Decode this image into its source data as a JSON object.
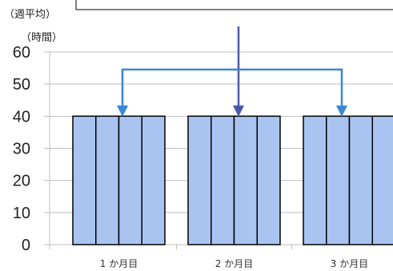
{
  "chart_data": {
    "type": "bar",
    "categories": [
      "1 か月目",
      "2 か月目",
      "3 か月目"
    ],
    "series": [
      {
        "values": [
          40,
          40,
          40
        ]
      },
      {
        "values": [
          40,
          40,
          40
        ]
      },
      {
        "values": [
          40,
          40,
          40
        ]
      },
      {
        "values": [
          40,
          40,
          40
        ]
      }
    ],
    "ylabel": "（時間）",
    "ylabel_note": "（週平均）",
    "ylim": [
      0,
      60
    ],
    "yticks": [
      0,
      10,
      20,
      30,
      40,
      50,
      60
    ],
    "grid": true
  },
  "colors": {
    "bar": "#a9c4f1",
    "bar_border": "#000000",
    "bracket_arrow": "#3a86d6",
    "center_arrow": "#4a5aa9",
    "grid": "#bfbfbf"
  }
}
